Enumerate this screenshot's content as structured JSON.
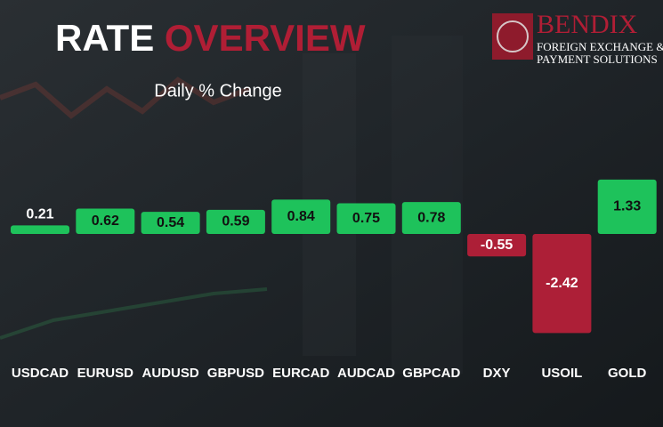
{
  "logo": {
    "name": "BENDIX",
    "line1": "FOREIGN EXCHANGE &",
    "line2": "PAYMENT SOLUTIONS"
  },
  "chart_data": {
    "type": "bar",
    "title": [
      "RATE",
      "OVERVIEW"
    ],
    "title_colors": [
      "#ffffff",
      "#b01e35"
    ],
    "subtitle": "Daily % Change",
    "categories": [
      "USDCAD",
      "EURUSD",
      "AUDUSD",
      "GBPUSD",
      "EURCAD",
      "AUDCAD",
      "GBPCAD",
      "DXY",
      "USOIL",
      "GOLD"
    ],
    "values": [
      0.21,
      0.62,
      0.54,
      0.59,
      0.84,
      0.75,
      0.78,
      -0.55,
      -2.42,
      1.33
    ],
    "positive_color": "#1ec25b",
    "negative_color": "#ad1f37"
  }
}
